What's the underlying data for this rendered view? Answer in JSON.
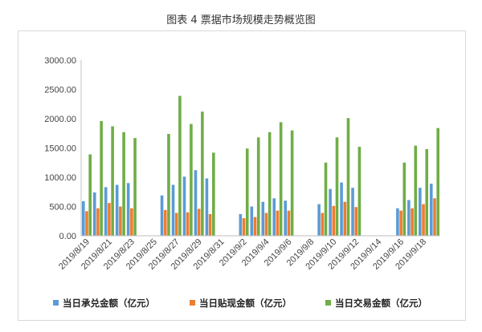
{
  "chart_data": {
    "type": "bar",
    "title": "图表 4  票据市场规模走势概览图",
    "categories": [
      "2019/8/19",
      "2019/8/20",
      "2019/8/21",
      "2019/8/22",
      "2019/8/23",
      "2019/8/24",
      "2019/8/25",
      "2019/8/26",
      "2019/8/27",
      "2019/8/28",
      "2019/8/29",
      "2019/8/30",
      "2019/8/31",
      "2019/9/1",
      "2019/9/2",
      "2019/9/3",
      "2019/9/4",
      "2019/9/5",
      "2019/9/6",
      "2019/9/7",
      "2019/9/8",
      "2019/9/9",
      "2019/9/10",
      "2019/9/11",
      "2019/9/12",
      "2019/9/13",
      "2019/9/14",
      "2019/9/15",
      "2019/9/16",
      "2019/9/17",
      "2019/9/18",
      "2019/9/19"
    ],
    "xtick_labels": [
      "2019/8/19",
      "2019/8/21",
      "2019/8/23",
      "2019/8/25",
      "2019/8/27",
      "2019/8/29",
      "2019/8/31",
      "2019/9/2",
      "2019/9/4",
      "2019/9/6",
      "2019/9/8",
      "2019/9/10",
      "2019/9/12",
      "2019/9/14",
      "2019/9/16",
      "2019/9/18"
    ],
    "yticks": [
      "0.00",
      "500.00",
      "1000.00",
      "1500.00",
      "2000.00",
      "2500.00",
      "3000.00"
    ],
    "ylim": [
      0,
      3000
    ],
    "grid": false,
    "legend_position": "bottom",
    "series": [
      {
        "name": "当日承兑金额（亿元）",
        "color": "#5b9bd5",
        "values": [
          590,
          740,
          830,
          870,
          900,
          null,
          null,
          690,
          870,
          1010,
          1120,
          980,
          null,
          null,
          370,
          500,
          580,
          640,
          600,
          null,
          null,
          540,
          800,
          910,
          820,
          null,
          null,
          null,
          470,
          610,
          820,
          890
        ]
      },
      {
        "name": "当日贴现金额（亿元）",
        "color": "#ed7d31",
        "values": [
          420,
          470,
          560,
          500,
          470,
          null,
          null,
          440,
          390,
          400,
          460,
          370,
          null,
          null,
          300,
          320,
          390,
          430,
          430,
          null,
          null,
          390,
          510,
          580,
          490,
          null,
          null,
          null,
          430,
          470,
          540,
          640
        ]
      },
      {
        "name": "当日交易金额（亿元）",
        "color": "#70ad47",
        "values": [
          1390,
          1960,
          1870,
          1770,
          1670,
          null,
          null,
          1740,
          2390,
          1910,
          2120,
          1420,
          null,
          null,
          1490,
          1680,
          1770,
          1940,
          1800,
          null,
          null,
          1250,
          1680,
          2010,
          1520,
          null,
          null,
          null,
          1250,
          1540,
          1480,
          1840
        ]
      }
    ]
  }
}
